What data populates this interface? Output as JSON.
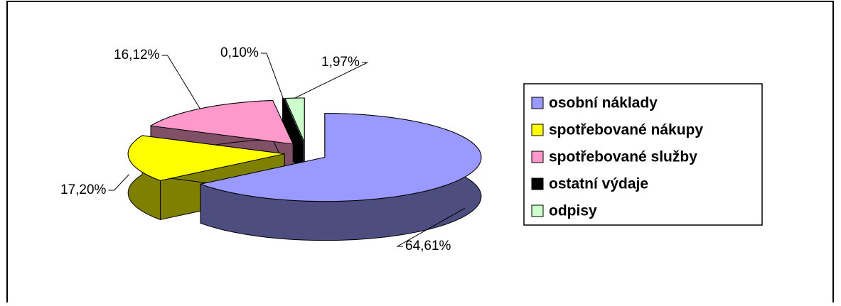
{
  "chart_data": {
    "type": "pie3d",
    "categories": [
      "osobní náklady",
      "spotřebované nákupy",
      "spotřebované služby",
      "ostatní výdaje",
      "odpisy"
    ],
    "values": [
      64.61,
      17.2,
      16.12,
      0.1,
      1.97
    ],
    "value_labels": [
      "64,61%",
      "17,20%",
      "16,12%",
      "0,10%",
      "1,97%"
    ],
    "colors": [
      "#9999ff",
      "#ffff00",
      "#ff99cc",
      "#000000",
      "#ccffcc"
    ],
    "side_colors": [
      "#4d4d80",
      "#808000",
      "#805066",
      "#000000",
      "#668066"
    ]
  }
}
